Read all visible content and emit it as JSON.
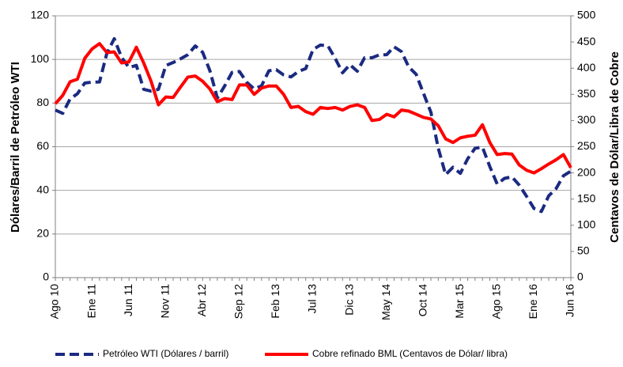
{
  "chart_data": {
    "type": "line",
    "y_label": "Dólares/Barril de Petróleo WTI",
    "y2_label": "Centavos de Dólar/Libra de Cobre",
    "categories": [
      "Ago 10",
      null,
      null,
      null,
      null,
      "Ene 11",
      null,
      null,
      null,
      null,
      "Jun 11",
      null,
      null,
      null,
      null,
      "Nov 11",
      null,
      null,
      null,
      null,
      "Abr 12",
      null,
      null,
      null,
      null,
      "Sep 12",
      null,
      null,
      null,
      null,
      "Feb 13",
      null,
      null,
      null,
      null,
      "Jul 13",
      null,
      null,
      null,
      null,
      "Dic 13",
      null,
      null,
      null,
      null,
      "May 14",
      null,
      null,
      null,
      null,
      "Oct 14",
      null,
      null,
      null,
      null,
      "Mar 15",
      null,
      null,
      null,
      null,
      "Ago 15",
      null,
      null,
      null,
      null,
      "Ene 16",
      null,
      null,
      null,
      null,
      "Jun 16"
    ],
    "series": [
      {
        "name": "Petróleo WTI (Dólares / barril)",
        "color": "#1b2a80",
        "style": "dashed",
        "axis": "y",
        "values": [
          76.8,
          75.3,
          81.9,
          84.3,
          89.2,
          89.6,
          89.7,
          102.9,
          109.5,
          100.9,
          96.3,
          97.3,
          86.3,
          85.5,
          86.3,
          97.2,
          98.6,
          100.3,
          102.2,
          106.2,
          103.3,
          94.7,
          82.3,
          87.9,
          94.1,
          94.5,
          89.5,
          86.5,
          87.9,
          94.8,
          95.3,
          92.9,
          92.0,
          94.5,
          95.8,
          104.6,
          106.6,
          106.3,
          100.5,
          93.9,
          97.6,
          94.6,
          100.8,
          100.8,
          102.1,
          102.2,
          105.8,
          103.6,
          96.5,
          93.2,
          84.4,
          75.8,
          59.3,
          47.2,
          50.6,
          47.8,
          54.5,
          59.3,
          59.8,
          50.9,
          42.9,
          45.5,
          46.2,
          42.4,
          37.2,
          31.7,
          30.3,
          37.5,
          40.8,
          46.7,
          48.8
        ]
      },
      {
        "name": "Cobre refinado BML (Centavos de Dólar/ libra)",
        "color": "#ff0000",
        "style": "solid",
        "axis": "y2",
        "values": [
          332,
          348,
          374,
          379,
          419,
          437,
          447,
          430,
          431,
          410,
          412,
          440,
          410,
          375,
          330,
          345,
          344,
          364,
          383,
          385,
          375,
          360,
          336,
          342,
          340,
          368,
          368,
          350,
          362,
          366,
          366,
          350,
          325,
          327,
          317,
          312,
          325,
          323,
          325,
          320,
          327,
          330,
          325,
          300,
          302,
          312,
          307,
          320,
          318,
          312,
          306,
          303,
          290,
          265,
          258,
          267,
          270,
          272,
          292,
          258,
          235,
          237,
          236,
          215,
          205,
          200,
          208,
          217,
          225,
          235,
          210
        ]
      }
    ],
    "ylim": [
      0,
      120
    ],
    "yticks": [
      0,
      20,
      40,
      60,
      80,
      100,
      120
    ],
    "y2lim": [
      0,
      500
    ],
    "y2ticks": [
      0,
      50,
      100,
      150,
      200,
      250,
      300,
      350,
      400,
      450,
      500
    ],
    "grid": true,
    "legend": "bottom"
  }
}
